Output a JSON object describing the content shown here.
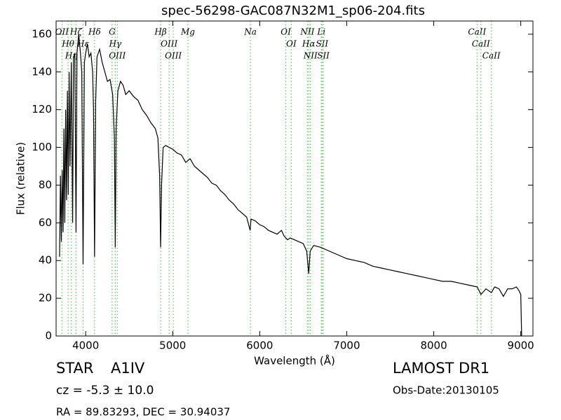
{
  "chart_data": {
    "type": "line",
    "title": "spec-56298-GAC087N32M1_sp06-204.fits",
    "x_label": "Wavelength (Å)",
    "y_label": "Flux (relative)",
    "color": "#000000",
    "x": [
      3700,
      3710,
      3720,
      3730,
      3740,
      3750,
      3760,
      3770,
      3780,
      3790,
      3800,
      3810,
      3820,
      3835,
      3850,
      3860,
      3875,
      3889,
      3900,
      3920,
      3940,
      3955,
      3970,
      3985,
      4000,
      4020,
      4040,
      4060,
      4080,
      4090,
      4102,
      4115,
      4130,
      4160,
      4190,
      4220,
      4250,
      4280,
      4310,
      4330,
      4340,
      4350,
      4370,
      4400,
      4430,
      4460,
      4500,
      4550,
      4600,
      4650,
      4700,
      4750,
      4800,
      4830,
      4850,
      4861,
      4872,
      4890,
      4920,
      4960,
      5000,
      5050,
      5100,
      5150,
      5200,
      5250,
      5300,
      5350,
      5400,
      5450,
      5500,
      5550,
      5600,
      5650,
      5700,
      5750,
      5800,
      5850,
      5890,
      5900,
      5950,
      6000,
      6050,
      6100,
      6150,
      6200,
      6250,
      6280,
      6300,
      6320,
      6350,
      6400,
      6450,
      6500,
      6540,
      6563,
      6580,
      6620,
      6700,
      6800,
      6900,
      7000,
      7100,
      7200,
      7300,
      7400,
      7500,
      7600,
      7700,
      7800,
      7900,
      8000,
      8100,
      8200,
      8300,
      8400,
      8500,
      8542,
      8600,
      8662,
      8700,
      8750,
      8800,
      8850,
      8900,
      8950,
      8980,
      9000,
      9010
    ],
    "values": [
      42,
      85,
      50,
      88,
      55,
      110,
      60,
      120,
      72,
      130,
      75,
      140,
      90,
      145,
      60,
      148,
      150,
      55,
      150,
      160,
      150,
      140,
      38,
      145,
      150,
      155,
      148,
      150,
      140,
      120,
      42,
      125,
      148,
      152,
      145,
      140,
      135,
      136,
      128,
      105,
      47,
      110,
      130,
      135,
      133,
      128,
      130,
      127,
      125,
      120,
      117,
      113,
      110,
      105,
      85,
      47,
      80,
      100,
      101,
      100,
      99,
      97,
      96,
      92,
      94,
      90,
      88,
      86,
      84,
      81,
      80,
      77,
      75,
      72,
      70,
      67,
      65,
      63,
      56,
      62,
      61,
      59,
      58,
      56,
      55,
      54,
      56,
      53,
      52,
      51,
      52,
      51,
      50,
      49,
      45,
      33,
      45,
      48,
      47,
      45,
      43,
      41,
      40,
      39,
      37,
      36,
      35,
      34,
      33,
      32,
      31,
      30,
      29,
      29,
      28,
      27,
      26,
      22,
      25,
      23,
      26,
      25,
      21,
      25,
      25,
      26,
      24,
      22,
      0
    ],
    "xlim": [
      3660,
      9140
    ],
    "ylim": [
      0,
      167
    ],
    "xticks": [
      4000,
      5000,
      6000,
      7000,
      8000,
      9000
    ],
    "yticks": [
      0,
      20,
      40,
      60,
      80,
      100,
      120,
      140,
      160
    ],
    "grid": false,
    "line_color": "#66bb66",
    "spectral_lines": [
      {
        "label": "OII",
        "x": 3727
      },
      {
        "label": "Hθ",
        "x": 3798
      },
      {
        "label": "Hη",
        "x": 3835
      },
      {
        "label": "Hζ",
        "x": 3889
      },
      {
        "label": "Hε",
        "x": 3970
      },
      {
        "label": "Hδ",
        "x": 4102
      },
      {
        "label": "G",
        "x": 4304
      },
      {
        "label": "Hγ",
        "x": 4340
      },
      {
        "label": "OIII",
        "x": 4363
      },
      {
        "label": "Hβ",
        "x": 4861
      },
      {
        "label": "OIII",
        "x": 4959
      },
      {
        "label": "OIII",
        "x": 5007
      },
      {
        "label": "Mg",
        "x": 5175
      },
      {
        "label": "Na",
        "x": 5893
      },
      {
        "label": "OI",
        "x": 6300
      },
      {
        "label": "OI",
        "x": 6363
      },
      {
        "label": "NII",
        "x": 6548
      },
      {
        "label": "Hα",
        "x": 6563
      },
      {
        "label": "NII",
        "x": 6583
      },
      {
        "label": "Li",
        "x": 6708
      },
      {
        "label": "SII",
        "x": 6717
      },
      {
        "label": "SII",
        "x": 6731
      },
      {
        "label": "CaII",
        "x": 8498
      },
      {
        "label": "CaII",
        "x": 8542
      },
      {
        "label": "CaII",
        "x": 8662
      }
    ]
  },
  "info": {
    "class": "STAR",
    "subclass": "A1IV",
    "cz": "cz = -5.3 ± 10.0",
    "coords": "RA = 89.83293, DEC = 30.94037",
    "survey": "LAMOST DR1",
    "obs_date": "Obs-Date:20130105"
  }
}
